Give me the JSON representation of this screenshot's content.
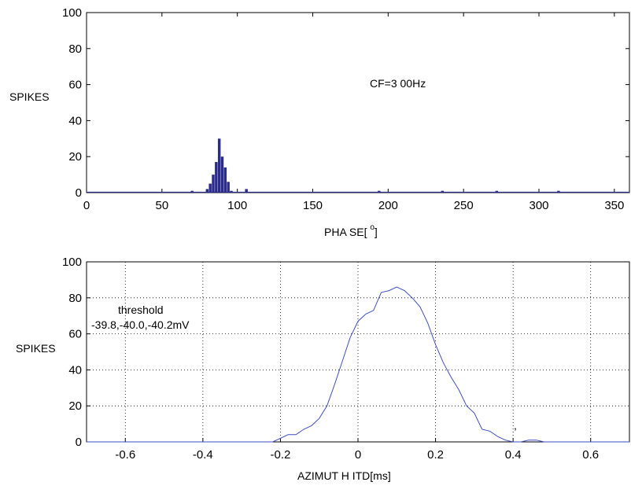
{
  "chart_data": [
    {
      "type": "bar",
      "xlabel": "PHA SE[ ]",
      "xlabel_superscript": "o",
      "ylabel": "SPIKES",
      "xlim": [
        0,
        360
      ],
      "ylim": [
        0,
        100
      ],
      "xticks": [
        0,
        50,
        100,
        150,
        200,
        250,
        300,
        350
      ],
      "yticks": [
        0,
        20,
        40,
        60,
        80,
        100
      ],
      "grid": false,
      "annotations": [
        "CF=3 00Hz"
      ],
      "bar_color": "#2b2b8c",
      "x": [
        70,
        80,
        82,
        84,
        86,
        88,
        90,
        92,
        94,
        96,
        106,
        194,
        236,
        272,
        313
      ],
      "values": [
        1,
        2,
        5,
        10,
        17,
        30,
        20,
        14,
        6,
        1,
        2,
        1,
        1,
        1,
        1
      ]
    },
    {
      "type": "line",
      "xlabel": "AZIMUT H  ITD[ms]",
      "ylabel": "SPIKES",
      "xlim": [
        -0.7,
        0.7
      ],
      "ylim": [
        0,
        100
      ],
      "xticks": [
        -0.6,
        -0.4,
        -0.2,
        0,
        0.2,
        0.4,
        0.6
      ],
      "yticks": [
        0,
        20,
        40,
        60,
        80,
        100
      ],
      "grid": true,
      "annotations": [
        "threshold",
        "-39.8,-40.0,-40.2mV",
        ","
      ],
      "line_color": "#3f4fc4",
      "x": [
        -0.7,
        -0.22,
        -0.2,
        -0.18,
        -0.16,
        -0.14,
        -0.12,
        -0.1,
        -0.08,
        -0.06,
        -0.04,
        -0.02,
        0,
        0.02,
        0.04,
        0.06,
        0.08,
        0.1,
        0.12,
        0.14,
        0.16,
        0.18,
        0.2,
        0.22,
        0.24,
        0.26,
        0.28,
        0.3,
        0.32,
        0.34,
        0.36,
        0.38,
        0.4,
        0.42,
        0.44,
        0.46,
        0.48,
        0.5,
        0.7
      ],
      "y": [
        0,
        0,
        2,
        4,
        4,
        7,
        9,
        13,
        20,
        32,
        45,
        58,
        67,
        71,
        73,
        83,
        84,
        86,
        84,
        80,
        75,
        66,
        54,
        44,
        36,
        29,
        20,
        16,
        7,
        6,
        3,
        1,
        0,
        0,
        1,
        1,
        0,
        0,
        0
      ]
    }
  ]
}
